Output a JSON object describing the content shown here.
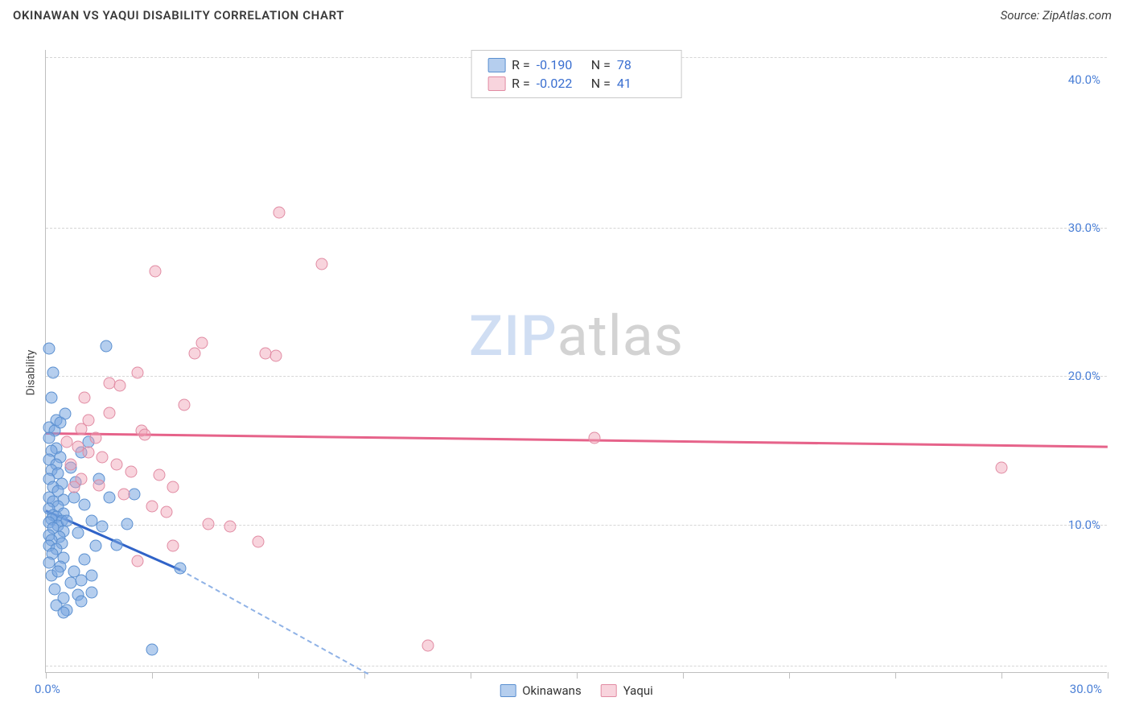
{
  "title": "OKINAWAN VS YAQUI DISABILITY CORRELATION CHART",
  "source_label": "Source: ZipAtlas.com",
  "ylabel": "Disability",
  "watermark": {
    "part1": "ZIP",
    "part2": "atlas"
  },
  "chart": {
    "type": "scatter",
    "xlim": [
      0,
      30
    ],
    "ylim": [
      0,
      42
    ],
    "x_axis": {
      "min_label": "0.0%",
      "max_label": "30.0%",
      "tick_positions_pct": [
        0,
        10,
        20,
        30,
        40,
        50,
        60,
        70,
        80,
        90,
        100
      ]
    },
    "y_axis": {
      "ticks": [
        {
          "value": 10,
          "label": "10.0%"
        },
        {
          "value": 20,
          "label": "20.0%"
        },
        {
          "value": 30,
          "label": "30.0%"
        },
        {
          "value": 40,
          "label": "40.0%"
        }
      ],
      "gridlines_at": [
        0.5,
        10,
        20,
        30,
        41.5
      ]
    },
    "colors": {
      "blue_fill": "rgba(120,166,224,0.55)",
      "blue_stroke": "#5a8fd0",
      "blue_line": "#3063c8",
      "blue_dash": "#8fb2e6",
      "pink_fill": "rgba(240,160,180,0.45)",
      "pink_stroke": "#e18ba3",
      "pink_line": "#e6638a",
      "grid": "#d6d6d6",
      "axis": "#bfbfbf",
      "tick_text": "#4a7fd6",
      "background": "#ffffff"
    },
    "legend_top": [
      {
        "swatch": "blue",
        "r_label": "R =",
        "r_value": "-0.190",
        "n_label": "N =",
        "n_value": "78"
      },
      {
        "swatch": "pink",
        "r_label": "R =",
        "r_value": "-0.022",
        "n_label": "N =",
        "n_value": "41"
      }
    ],
    "legend_bottom": [
      {
        "swatch": "blue",
        "label": "Okinawans"
      },
      {
        "swatch": "pink",
        "label": "Yaqui"
      }
    ],
    "trend_lines": {
      "pink": {
        "x1": 0,
        "y1": 16.2,
        "x2": 30,
        "y2": 15.3
      },
      "blue_solid": {
        "x1": 0,
        "y1": 11.0,
        "x2": 3.8,
        "y2": 7.0
      },
      "blue_dash": {
        "x1": 3.8,
        "y1": 7.0,
        "x2": 9.1,
        "y2": 0
      }
    },
    "series": [
      {
        "name": "Okinawans",
        "class": "blue",
        "points": [
          [
            0.1,
            21.8
          ],
          [
            0.2,
            20.2
          ],
          [
            0.15,
            18.5
          ],
          [
            0.3,
            17.0
          ],
          [
            0.1,
            16.5
          ],
          [
            0.25,
            16.3
          ],
          [
            0.1,
            15.8
          ],
          [
            0.3,
            15.1
          ],
          [
            0.15,
            14.9
          ],
          [
            0.4,
            14.5
          ],
          [
            0.08,
            14.3
          ],
          [
            0.3,
            14.0
          ],
          [
            0.15,
            13.6
          ],
          [
            0.35,
            13.4
          ],
          [
            0.1,
            13.0
          ],
          [
            0.45,
            12.7
          ],
          [
            0.2,
            12.5
          ],
          [
            0.35,
            12.2
          ],
          [
            0.1,
            11.8
          ],
          [
            0.5,
            11.6
          ],
          [
            0.2,
            11.5
          ],
          [
            0.35,
            11.2
          ],
          [
            0.1,
            11.0
          ],
          [
            0.5,
            10.7
          ],
          [
            0.2,
            10.6
          ],
          [
            0.3,
            10.5
          ],
          [
            0.15,
            10.3
          ],
          [
            0.45,
            10.2
          ],
          [
            0.1,
            10.1
          ],
          [
            0.35,
            9.9
          ],
          [
            0.2,
            9.7
          ],
          [
            0.5,
            9.5
          ],
          [
            0.1,
            9.2
          ],
          [
            0.38,
            9.1
          ],
          [
            0.15,
            8.9
          ],
          [
            0.45,
            8.7
          ],
          [
            0.1,
            8.5
          ],
          [
            0.3,
            8.3
          ],
          [
            0.18,
            8.0
          ],
          [
            0.5,
            7.7
          ],
          [
            0.1,
            7.4
          ],
          [
            0.4,
            7.1
          ],
          [
            0.7,
            13.8
          ],
          [
            0.85,
            12.8
          ],
          [
            0.6,
            10.2
          ],
          [
            0.9,
            9.4
          ],
          [
            1.1,
            11.3
          ],
          [
            1.3,
            10.2
          ],
          [
            1.0,
            14.8
          ],
          [
            1.4,
            8.5
          ],
          [
            1.5,
            13.0
          ],
          [
            1.7,
            22.0
          ],
          [
            1.2,
            15.5
          ],
          [
            0.7,
            6.0
          ],
          [
            0.9,
            5.2
          ],
          [
            0.5,
            5.0
          ],
          [
            0.3,
            4.5
          ],
          [
            0.6,
            4.2
          ],
          [
            0.8,
            6.8
          ],
          [
            1.0,
            6.2
          ],
          [
            1.3,
            5.4
          ],
          [
            1.1,
            7.6
          ],
          [
            1.6,
            9.8
          ],
          [
            1.8,
            11.8
          ],
          [
            2.3,
            10.0
          ],
          [
            2.0,
            8.6
          ],
          [
            2.5,
            12.0
          ],
          [
            3.0,
            1.5
          ],
          [
            3.8,
            7.0
          ],
          [
            0.4,
            16.8
          ],
          [
            0.55,
            17.4
          ],
          [
            0.15,
            6.5
          ],
          [
            0.35,
            6.8
          ],
          [
            0.25,
            5.6
          ],
          [
            0.5,
            4.0
          ],
          [
            1.0,
            4.8
          ],
          [
            1.3,
            6.5
          ],
          [
            0.8,
            11.8
          ]
        ]
      },
      {
        "name": "Yaqui",
        "class": "pink",
        "points": [
          [
            6.6,
            31.0
          ],
          [
            7.8,
            27.5
          ],
          [
            3.1,
            27.0
          ],
          [
            4.4,
            22.2
          ],
          [
            4.2,
            21.5
          ],
          [
            6.2,
            21.5
          ],
          [
            6.5,
            21.3
          ],
          [
            2.6,
            20.2
          ],
          [
            1.8,
            19.5
          ],
          [
            2.1,
            19.3
          ],
          [
            3.9,
            18.0
          ],
          [
            1.2,
            17.0
          ],
          [
            1.0,
            16.4
          ],
          [
            2.7,
            16.3
          ],
          [
            2.8,
            16.0
          ],
          [
            1.4,
            15.8
          ],
          [
            0.6,
            15.5
          ],
          [
            0.9,
            15.2
          ],
          [
            1.2,
            14.8
          ],
          [
            1.6,
            14.5
          ],
          [
            2.0,
            14.0
          ],
          [
            0.7,
            14.0
          ],
          [
            2.4,
            13.5
          ],
          [
            3.2,
            13.3
          ],
          [
            1.0,
            13.0
          ],
          [
            1.5,
            12.6
          ],
          [
            3.6,
            12.5
          ],
          [
            2.2,
            12.0
          ],
          [
            3.0,
            11.2
          ],
          [
            4.6,
            10.0
          ],
          [
            3.4,
            10.8
          ],
          [
            5.2,
            9.8
          ],
          [
            6.0,
            8.8
          ],
          [
            3.6,
            8.5
          ],
          [
            2.6,
            7.5
          ],
          [
            10.8,
            1.8
          ],
          [
            15.5,
            15.8
          ],
          [
            27.0,
            13.8
          ],
          [
            1.8,
            17.5
          ],
          [
            1.1,
            18.5
          ],
          [
            0.8,
            12.5
          ]
        ]
      }
    ]
  }
}
